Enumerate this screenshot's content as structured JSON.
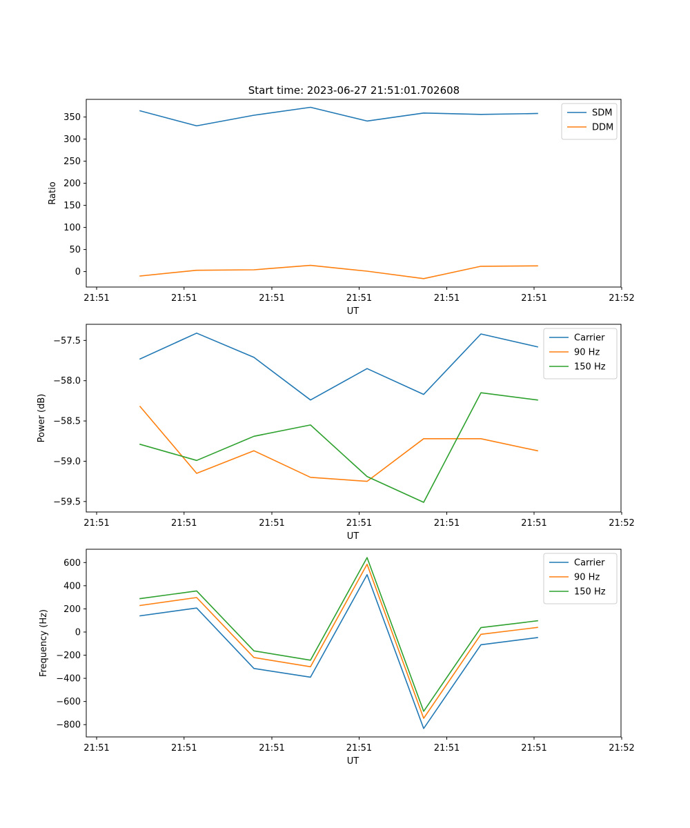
{
  "figure": {
    "title": "Start time: 2023-06-27 21:51:01.702608"
  },
  "colors": {
    "blue": "#1f77b4",
    "orange": "#ff7f0e",
    "green": "#2ca02c"
  },
  "chart_data": [
    {
      "type": "line",
      "xlabel": "UT",
      "ylabel": "Ratio",
      "x_tick_labels": [
        "21:51",
        "21:51",
        "21:51",
        "21:51",
        "21:51",
        "21:51",
        "21:52"
      ],
      "y_ticks": [
        0,
        50,
        100,
        150,
        200,
        250,
        300,
        350
      ],
      "ylim": [
        -35,
        390
      ],
      "legend": "top-right",
      "grid": false,
      "series": [
        {
          "name": "SDM",
          "color": "#1f77b4",
          "values": [
            364,
            330,
            354,
            372,
            341,
            359,
            356,
            358
          ]
        },
        {
          "name": "DDM",
          "color": "#ff7f0e",
          "values": [
            -10,
            3,
            4,
            14,
            1,
            -16,
            12,
            13
          ]
        }
      ]
    },
    {
      "type": "line",
      "xlabel": "UT",
      "ylabel": "Power (dB)",
      "x_tick_labels": [
        "21:51",
        "21:51",
        "21:51",
        "21:51",
        "21:51",
        "21:51",
        "21:52"
      ],
      "y_ticks": [
        -57.5,
        -58.0,
        -58.5,
        -59.0,
        -59.5
      ],
      "y_tick_labels": [
        "−57.5",
        "−58.0",
        "−58.5",
        "−59.0",
        "−59.5"
      ],
      "ylim": [
        -59.63,
        -57.3
      ],
      "legend": "top-right",
      "grid": false,
      "series": [
        {
          "name": "Carrier",
          "color": "#1f77b4",
          "values": [
            -57.73,
            -57.41,
            -57.71,
            -58.24,
            -57.85,
            -58.17,
            -57.42,
            -57.58
          ]
        },
        {
          "name": "90 Hz",
          "color": "#ff7f0e",
          "values": [
            -58.32,
            -59.15,
            -58.87,
            -59.2,
            -59.25,
            -58.72,
            -58.72,
            -58.87
          ]
        },
        {
          "name": "150 Hz",
          "color": "#2ca02c",
          "values": [
            -58.79,
            -58.99,
            -58.69,
            -58.55,
            -59.19,
            -59.51,
            -58.15,
            -58.24
          ]
        }
      ]
    },
    {
      "type": "line",
      "xlabel": "UT",
      "ylabel": "Frequency (Hz)",
      "x_tick_labels": [
        "21:51",
        "21:51",
        "21:51",
        "21:51",
        "21:51",
        "21:51",
        "21:52"
      ],
      "y_ticks": [
        -800,
        -600,
        -400,
        -200,
        0,
        200,
        400,
        600
      ],
      "y_tick_labels": [
        "−800",
        "−600",
        "−400",
        "−200",
        "0",
        "200",
        "400",
        "600"
      ],
      "ylim": [
        -906,
        715
      ],
      "legend": "top-right",
      "grid": false,
      "series": [
        {
          "name": "Carrier",
          "color": "#1f77b4",
          "values": [
            140,
            207,
            -315,
            -390,
            495,
            -833,
            -110,
            -48
          ]
        },
        {
          "name": "90 Hz",
          "color": "#ff7f0e",
          "values": [
            229,
            298,
            -220,
            -300,
            585,
            -745,
            -20,
            40
          ]
        },
        {
          "name": "150 Hz",
          "color": "#2ca02c",
          "values": [
            288,
            355,
            -163,
            -243,
            643,
            -685,
            38,
            97
          ]
        }
      ]
    }
  ]
}
